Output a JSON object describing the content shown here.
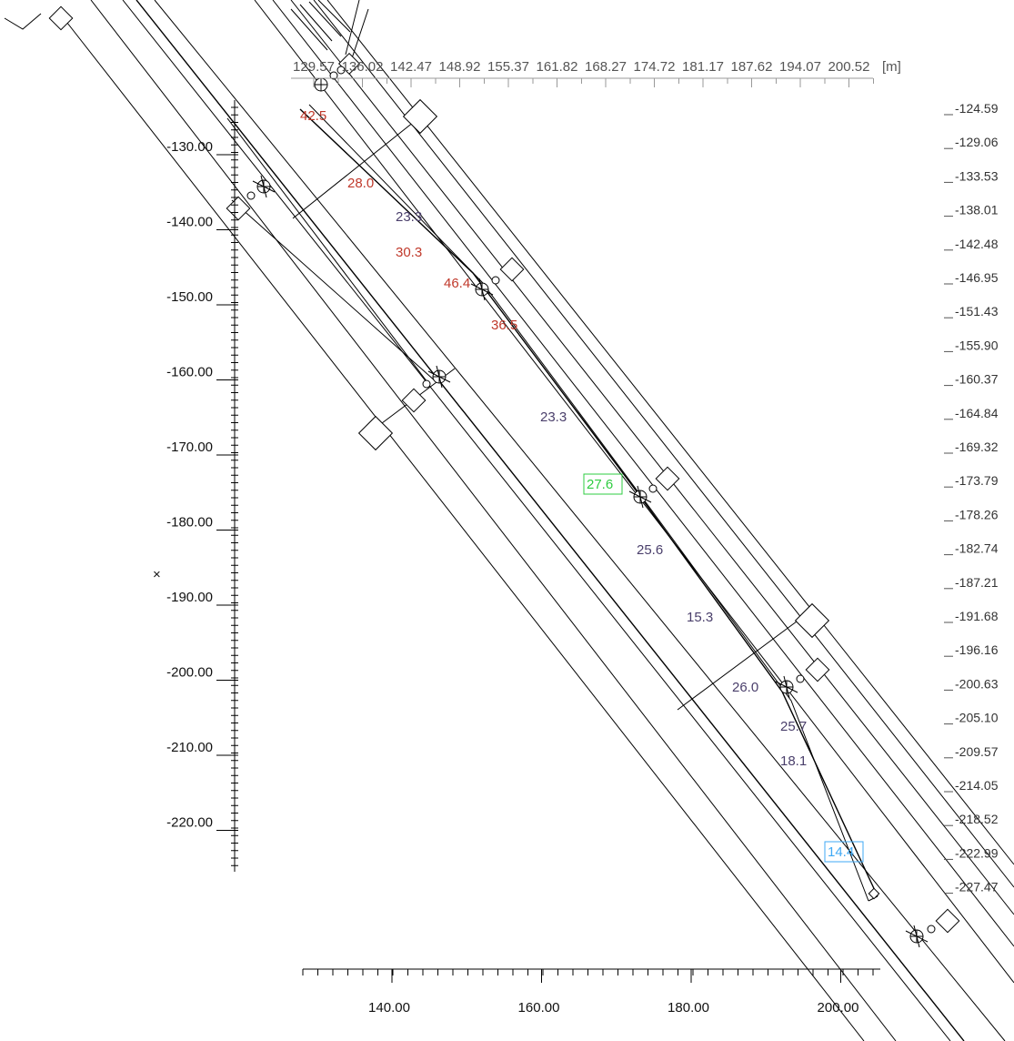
{
  "top_scale": {
    "labels": [
      "129.57",
      "136.02",
      "142.47",
      "148.92",
      "155.37",
      "161.82",
      "168.27",
      "174.72",
      "181.17",
      "187.62",
      "194.07",
      "200.52"
    ],
    "unit": "[m]"
  },
  "right_scale": {
    "labels": [
      "-124.59",
      "-129.06",
      "-133.53",
      "-138.01",
      "-142.48",
      "-146.95",
      "-151.43",
      "-155.90",
      "-160.37",
      "-164.84",
      "-169.32",
      "-173.79",
      "-178.26",
      "-182.74",
      "-187.21",
      "-191.68",
      "-196.16",
      "-200.63",
      "-205.10",
      "-209.57",
      "-214.05",
      "-218.52",
      "-222.99",
      "-227.47"
    ]
  },
  "left_axis": {
    "labels": [
      "-130.00",
      "-140.00",
      "-150.00",
      "-160.00",
      "-170.00",
      "-180.00",
      "-190.00",
      "-200.00",
      "-210.00",
      "-220.00"
    ]
  },
  "bottom_axis": {
    "labels": [
      "140.00",
      "160.00",
      "180.00",
      "200.00"
    ]
  },
  "marker": "×",
  "measurements": [
    {
      "text": "42.5",
      "color": "#c0392b"
    },
    {
      "text": "28.0",
      "color": "#c0392b"
    },
    {
      "text": "23.3",
      "color": "#4a3f6b"
    },
    {
      "text": "30.3",
      "color": "#c0392b"
    },
    {
      "text": "46.4",
      "color": "#c0392b"
    },
    {
      "text": "36.5",
      "color": "#c0392b"
    },
    {
      "text": "23.3",
      "color": "#4a3f6b"
    },
    {
      "text": "27.6",
      "color": "#2ecc40"
    },
    {
      "text": "25.6",
      "color": "#4a3f6b"
    },
    {
      "text": "15.3",
      "color": "#4a3f6b"
    },
    {
      "text": "26.0",
      "color": "#4a3f6b"
    },
    {
      "text": "25.7",
      "color": "#4a3f6b"
    },
    {
      "text": "18.1",
      "color": "#4a3f6b"
    },
    {
      "text": "14.4",
      "color": "#3fa9f5"
    }
  ]
}
